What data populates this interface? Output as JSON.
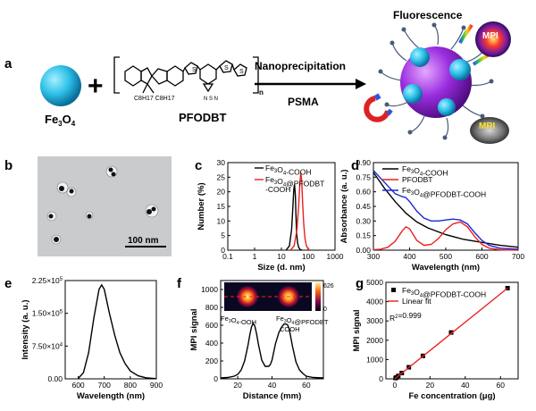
{
  "scheme": {
    "panel": "a",
    "fe3o4": "Fe3O4",
    "pfodbt": "PFODBT",
    "method": "Nanoprecipitation",
    "reagent": "PSMA",
    "fluorescence": "Fluorescence",
    "mpi": "MPI",
    "mri": "MRI",
    "side_chain": "C8H17 C8H17"
  },
  "panel_b": {
    "label": "b",
    "scalebar": "100 nm"
  },
  "chart_data": [
    {
      "panel": "c",
      "type": "line",
      "xlabel": "Size (d. nm)",
      "ylabel": "Number (%)",
      "xscale": "log",
      "xlim": [
        0.1,
        1000
      ],
      "ylim": [
        0,
        30
      ],
      "xticks": [
        "0.1",
        "1",
        "10",
        "100",
        "1000"
      ],
      "yticks": [
        "0",
        "5",
        "10",
        "15",
        "20",
        "25",
        "30"
      ],
      "legend": "top-right",
      "series": [
        {
          "name": "Fe3O4-COOH",
          "color": "#000000",
          "x": [
            15,
            20,
            24,
            27,
            29,
            31,
            33,
            35,
            37,
            40,
            44,
            50,
            60
          ],
          "y": [
            0,
            1.5,
            7,
            15,
            21,
            22.5,
            19,
            12,
            6,
            2.5,
            1,
            0.2,
            0
          ]
        },
        {
          "name": "Fe3O4@PFODBT-COOH",
          "color": "#e8221e",
          "x": [
            22,
            30,
            38,
            44,
            49,
            53,
            57,
            62,
            68,
            76,
            86,
            100,
            120
          ],
          "y": [
            0,
            1.5,
            7,
            15,
            23,
            26.5,
            24,
            16,
            9,
            4,
            1.5,
            0.4,
            0
          ]
        }
      ]
    },
    {
      "panel": "d",
      "type": "line",
      "xlabel": "Wavelength (nm)",
      "ylabel": "Absorbance (a. u.)",
      "xlim": [
        300,
        700
      ],
      "ylim": [
        0,
        0.9
      ],
      "xticks": [
        "300",
        "400",
        "500",
        "600",
        "700"
      ],
      "yticks": [
        "0.00",
        "0.15",
        "0.30",
        "0.45",
        "0.60",
        "0.75",
        "0.90"
      ],
      "legend": "top-right",
      "series": [
        {
          "name": "Fe3O4-COOH",
          "color": "#000000",
          "x": [
            300,
            330,
            360,
            390,
            420,
            450,
            500,
            550,
            600,
            650,
            700
          ],
          "y": [
            0.8,
            0.64,
            0.5,
            0.38,
            0.29,
            0.23,
            0.16,
            0.11,
            0.08,
            0.05,
            0.03
          ]
        },
        {
          "name": "PFODBT",
          "color": "#e8221e",
          "x": [
            300,
            320,
            340,
            360,
            380,
            390,
            400,
            420,
            440,
            460,
            480,
            500,
            520,
            540,
            560,
            580,
            600,
            620,
            650,
            700
          ],
          "y": [
            0.005,
            0.01,
            0.03,
            0.09,
            0.2,
            0.24,
            0.22,
            0.1,
            0.05,
            0.06,
            0.12,
            0.21,
            0.27,
            0.29,
            0.24,
            0.14,
            0.06,
            0.02,
            0.005,
            0
          ]
        },
        {
          "name": "Fe3O4@PFODBT-COOH",
          "color": "#1a28d6",
          "x": [
            300,
            330,
            360,
            380,
            390,
            400,
            420,
            440,
            460,
            480,
            500,
            520,
            540,
            560,
            580,
            600,
            620,
            650,
            700
          ],
          "y": [
            0.82,
            0.7,
            0.58,
            0.55,
            0.54,
            0.5,
            0.4,
            0.33,
            0.3,
            0.3,
            0.31,
            0.32,
            0.31,
            0.27,
            0.18,
            0.1,
            0.05,
            0.02,
            0.01
          ]
        }
      ]
    },
    {
      "panel": "e",
      "type": "line",
      "xlabel": "Wavelength (nm)",
      "ylabel": "Intensity (a. u.)",
      "xlim": [
        550,
        900
      ],
      "ylim": [
        0,
        225000
      ],
      "xticks": [
        "600",
        "700",
        "800",
        "900"
      ],
      "yticks": [
        "0.00",
        "7.50x10^4",
        "1.50x10^5",
        "2.25x10^5"
      ],
      "series": [
        {
          "name": "",
          "color": "#000000",
          "x": [
            600,
            620,
            640,
            660,
            680,
            690,
            700,
            720,
            740,
            760,
            780,
            800,
            830,
            860,
            900
          ],
          "y": [
            1000,
            14000,
            60000,
            140000,
            205000,
            215000,
            205000,
            150000,
            100000,
            60000,
            35000,
            18000,
            7000,
            2500,
            500
          ]
        }
      ]
    },
    {
      "panel": "f",
      "type": "line",
      "xlabel": "Distance (mm)",
      "ylabel": "MPI signal",
      "xlim": [
        10,
        70
      ],
      "ylim": [
        0,
        1100
      ],
      "xticks": [
        "20",
        "40",
        "60"
      ],
      "yticks": [
        "0",
        "200",
        "400",
        "600",
        "800",
        "1000"
      ],
      "inset_labels": [
        "Fe3O4-OOH",
        "Fe3O4@PFODBT",
        "COOH"
      ],
      "colorbar": {
        "max": "626",
        "min": "0"
      },
      "series": [
        {
          "name": "",
          "color": "#000000",
          "x": [
            10,
            14,
            18,
            20,
            22,
            24,
            26,
            27,
            28,
            29,
            30,
            31,
            32,
            34,
            36,
            38,
            39,
            40,
            42,
            44,
            46,
            47,
            48,
            49,
            50,
            51,
            52,
            54,
            56,
            58,
            60,
            64,
            70
          ],
          "y": [
            10,
            15,
            30,
            50,
            100,
            200,
            380,
            490,
            580,
            620,
            590,
            500,
            390,
            210,
            140,
            140,
            160,
            210,
            390,
            520,
            590,
            612,
            615,
            605,
            560,
            460,
            360,
            190,
            100,
            60,
            30,
            15,
            10
          ]
        }
      ]
    },
    {
      "panel": "g",
      "type": "scatter",
      "xlabel": "Fe concentration (μg)",
      "ylabel": "MPI signal",
      "xlim": [
        -5,
        70
      ],
      "ylim": [
        0,
        5000
      ],
      "xticks": [
        "0",
        "20",
        "40",
        "60"
      ],
      "yticks": [
        "0",
        "1000",
        "2000",
        "3000",
        "4000",
        "5000"
      ],
      "annotation": "R2=0.999",
      "legend": "top-left",
      "series": [
        {
          "name": "Fe3O4@PFODBT-COOH",
          "color": "#000000",
          "x": [
            0.5,
            1,
            2,
            4,
            8,
            16,
            32,
            64
          ],
          "y": [
            40,
            75,
            150,
            300,
            600,
            1190,
            2400,
            4700
          ]
        },
        {
          "name": "Linear fit",
          "color": "#e8221e",
          "x": [
            0,
            64
          ],
          "y": [
            0,
            4700
          ]
        }
      ]
    }
  ]
}
